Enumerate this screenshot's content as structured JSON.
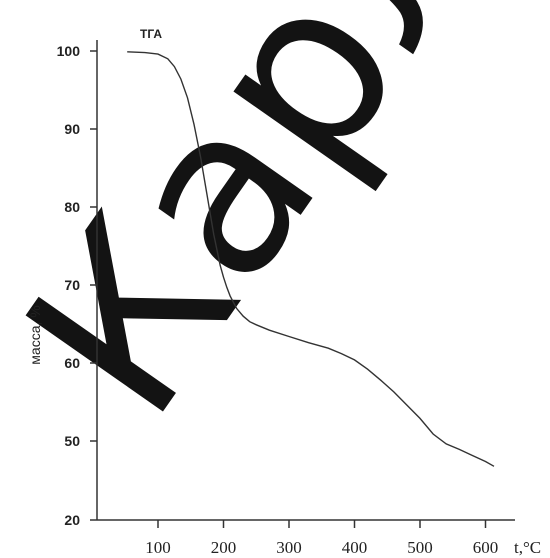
{
  "chart_data": {
    "type": "line",
    "series_label": "ТГА",
    "ylabel": "масса, %",
    "xlabel": "t,°C",
    "yticks": [
      20,
      50,
      60,
      70,
      80,
      90,
      100
    ],
    "xticks": [
      100,
      200,
      300,
      400,
      500,
      600
    ],
    "xlim": [
      50,
      640
    ],
    "ylim": [
      20,
      102
    ],
    "grid": false,
    "series": [
      {
        "x": [
          53,
          80,
          100,
          115,
          125,
          135,
          145,
          155,
          165,
          175,
          185,
          195,
          200,
          205,
          210,
          220,
          230,
          240,
          250,
          270,
          300,
          330,
          360,
          380,
          400,
          420,
          440,
          460,
          480,
          500,
          520,
          540,
          560,
          580,
          600,
          613
        ],
        "y": [
          99.9,
          99.8,
          99.6,
          99.0,
          98.0,
          96.4,
          94.0,
          90.6,
          86.4,
          81.5,
          76.5,
          72.5,
          71.0,
          69.7,
          68.6,
          67.0,
          66.0,
          65.3,
          64.9,
          64.2,
          63.4,
          62.6,
          61.9,
          61.2,
          60.4,
          59.2,
          57.8,
          56.3,
          54.6,
          52.9,
          50.9,
          48.9,
          46.8,
          44.5,
          42.2,
          40.4
        ]
      }
    ]
  },
  "watermark": {
    "text": "Карл",
    "color": "#000000"
  }
}
